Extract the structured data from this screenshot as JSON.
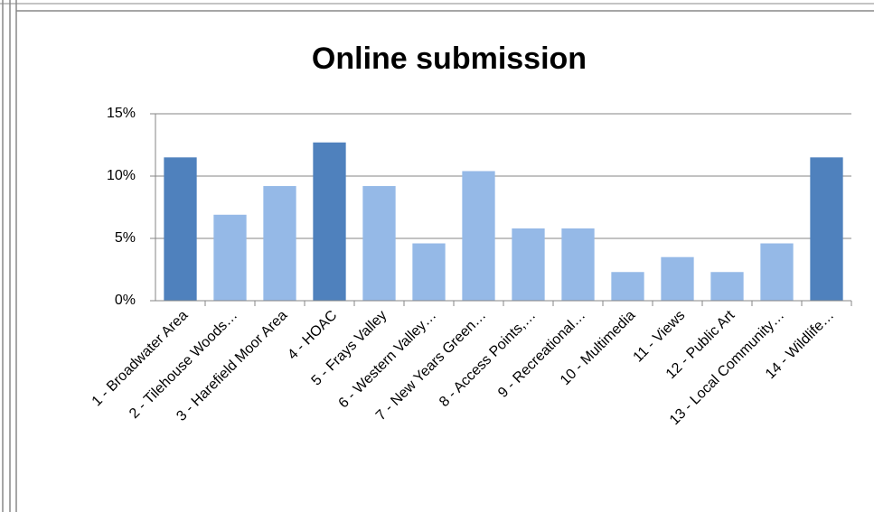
{
  "chart_data": {
    "type": "bar",
    "title": "Online submission",
    "categories": [
      "1 - Broadwater Area",
      "2 - Tilehouse Woods…",
      "3 - Harefield Moor Area",
      "4 - HOAC",
      "5 - Frays Valley",
      "6 - Western Valley…",
      "7 - New Years Green…",
      "8 - Access Points,…",
      "9 - Recreational…",
      "10 - Multimedia",
      "11 - Views",
      "12 - Public Art",
      "13 - Local Community…",
      "14 - Wildlife…"
    ],
    "values": [
      11.5,
      6.9,
      9.2,
      12.7,
      9.2,
      4.6,
      10.4,
      5.8,
      5.8,
      2.3,
      3.5,
      2.3,
      4.6,
      11.5
    ],
    "colors": [
      "#4f81bd",
      "#95b9e7",
      "#95b9e7",
      "#4f81bd",
      "#95b9e7",
      "#95b9e7",
      "#95b9e7",
      "#95b9e7",
      "#95b9e7",
      "#95b9e7",
      "#95b9e7",
      "#95b9e7",
      "#95b9e7",
      "#4f81bd"
    ],
    "ylim": [
      0,
      15
    ],
    "yticks": [
      {
        "value": 0,
        "label": "0%"
      },
      {
        "value": 5,
        "label": "5%"
      },
      {
        "value": 10,
        "label": "10%"
      },
      {
        "value": 15,
        "label": "15%"
      }
    ],
    "grid": true
  }
}
